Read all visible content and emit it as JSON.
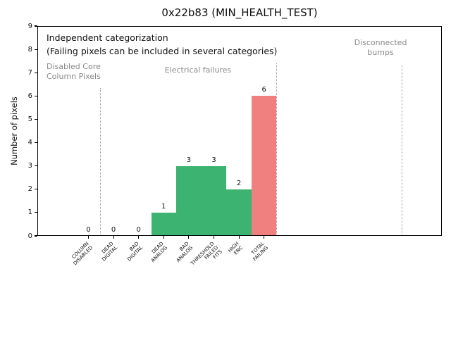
{
  "chart_data": {
    "type": "bar",
    "title": "0x22b83 (MIN_HEALTH_TEST)",
    "ylabel": "Number of pixels",
    "ylim": [
      0,
      9
    ],
    "yticks": [
      0,
      1,
      2,
      3,
      4,
      5,
      6,
      7,
      8,
      9
    ],
    "grid": false,
    "legend_position": "none",
    "categories": [
      {
        "label": "COLUMN\nDISABLED",
        "value": 0,
        "value_label": "0",
        "color": "#3cb371"
      },
      {
        "label": "DEAD\nDIGITAL",
        "value": 0,
        "value_label": "0",
        "color": "#3cb371"
      },
      {
        "label": "BAD\nDIGITAL",
        "value": 0,
        "value_label": "0",
        "color": "#3cb371"
      },
      {
        "label": "DEAD\nANALOG",
        "value": 1,
        "value_label": "1",
        "color": "#3cb371"
      },
      {
        "label": "BAD\nANALOG",
        "value": 3,
        "value_label": "3",
        "color": "#3cb371"
      },
      {
        "label": "THRESHOLD\nFAILED\nFITS",
        "value": 3,
        "value_label": "3",
        "color": "#3cb371"
      },
      {
        "label": "HIGH\nENC",
        "value": 2,
        "value_label": "2",
        "color": "#3cb371"
      },
      {
        "label": "TOTAL\nFAILING",
        "value": 6,
        "value_label": "6",
        "color": "#f08080"
      }
    ],
    "separators": [
      {
        "pos": 0.5,
        "height_units": 6.35
      },
      {
        "pos": 7.5,
        "height_units": 7.4
      },
      {
        "pos": 12.5,
        "height_units": 7.35
      }
    ],
    "annotations": {
      "independent": "Independent categorization",
      "independent_sub": "(Failing pixels can be included in several categories)",
      "disabled_core_column": "Disabled Core\nColumn Pixels",
      "electrical": "Electrical failures",
      "disconnected_bumps": "Disconnected\nbumps"
    },
    "colors": {
      "bar_green": "#3cb371",
      "bar_red": "#f08080",
      "annotation_gray": "#8a8a8a",
      "separator_gray": "#999999"
    }
  }
}
